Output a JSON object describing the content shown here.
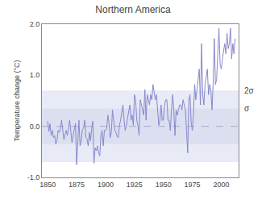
{
  "chart_data": {
    "type": "line",
    "title": "Northern America",
    "ylabel": "Temperature change (°C)",
    "x": [
      1850,
      1851,
      1852,
      1853,
      1854,
      1855,
      1856,
      1857,
      1858,
      1859,
      1860,
      1861,
      1862,
      1863,
      1864,
      1865,
      1866,
      1867,
      1868,
      1869,
      1870,
      1871,
      1872,
      1873,
      1874,
      1875,
      1876,
      1877,
      1878,
      1879,
      1880,
      1881,
      1882,
      1883,
      1884,
      1885,
      1886,
      1887,
      1888,
      1889,
      1890,
      1891,
      1892,
      1893,
      1894,
      1895,
      1896,
      1897,
      1898,
      1899,
      1900,
      1901,
      1902,
      1903,
      1904,
      1905,
      1906,
      1907,
      1908,
      1909,
      1910,
      1911,
      1912,
      1913,
      1914,
      1915,
      1916,
      1917,
      1918,
      1919,
      1920,
      1921,
      1922,
      1923,
      1924,
      1925,
      1926,
      1927,
      1928,
      1929,
      1930,
      1931,
      1932,
      1933,
      1934,
      1935,
      1936,
      1937,
      1938,
      1939,
      1940,
      1941,
      1942,
      1943,
      1944,
      1945,
      1946,
      1947,
      1948,
      1949,
      1950,
      1951,
      1952,
      1953,
      1954,
      1955,
      1956,
      1957,
      1958,
      1959,
      1960,
      1961,
      1962,
      1963,
      1964,
      1965,
      1966,
      1967,
      1968,
      1969,
      1970,
      1971,
      1972,
      1973,
      1974,
      1975,
      1976,
      1977,
      1978,
      1979,
      1980,
      1981,
      1982,
      1983,
      1984,
      1985,
      1986,
      1987,
      1988,
      1989,
      1990,
      1991,
      1992,
      1993,
      1994,
      1995,
      1996,
      1997,
      1998,
      1999,
      2000,
      2001,
      2002,
      2003,
      2004,
      2005,
      2006,
      2007,
      2008,
      2009,
      2010,
      2011,
      2012
    ],
    "values": [
      0.1,
      -0.1,
      0.05,
      -0.18,
      -0.08,
      -0.22,
      -0.18,
      -0.35,
      -0.28,
      -0.08,
      -0.12,
      -0.04,
      0.12,
      -0.04,
      -0.26,
      -0.16,
      -0.08,
      -0.18,
      -0.04,
      0.12,
      -0.1,
      -0.32,
      -0.18,
      -0.06,
      0.06,
      -0.75,
      -0.3,
      0.12,
      -0.38,
      -0.28,
      -0.06,
      -0.04,
      0.12,
      -0.22,
      -0.25,
      -0.38,
      -0.12,
      -0.28,
      -0.04,
      0.1,
      -0.72,
      -0.42,
      -0.48,
      -0.38,
      -0.52,
      -0.58,
      -0.18,
      -0.08,
      -0.38,
      -0.08,
      -0.08,
      -0.04,
      0.22,
      0.06,
      -0.22,
      -0.12,
      0.32,
      0.1,
      -0.08,
      -0.12,
      -0.2,
      -0.22,
      0.02,
      0.12,
      0.32,
      0.42,
      0.12,
      -0.08,
      0.02,
      0.18,
      0.28,
      0.42,
      0.12,
      0.22,
      0.02,
      0.62,
      0.52,
      0.12,
      0.02,
      -0.18,
      0.52,
      0.42,
      0.32,
      0.22,
      0.72,
      0.12,
      0.62,
      0.52,
      0.42,
      0.62,
      0.52,
      0.82,
      0.62,
      0.52,
      0.62,
      0.32,
      0.02,
      0.12,
      0.42,
      0.12,
      0.12,
      0.42,
      0.52,
      0.52,
      0.12,
      0.12,
      -0.08,
      0.32,
      0.62,
      0.32,
      -0.18,
      0.32,
      0.22,
      0.32,
      0.42,
      0.42,
      0.32,
      0.52,
      0.42,
      0.32,
      -0.08,
      -0.52,
      0.52,
      0.62,
      0.08,
      -0.08,
      0.22,
      0.82,
      0.52,
      0.72,
      0.92,
      1.12,
      0.42,
      1.62,
      0.62,
      0.42,
      0.82,
      1.02,
      1.12,
      0.62,
      0.82,
      0.72,
      0.32,
      0.82,
      1.72,
      0.82,
      0.92,
      1.42,
      1.92,
      1.22,
      1.12,
      1.32,
      1.52,
      1.62,
      1.42,
      1.82,
      1.52,
      1.62,
      1.92,
      1.32,
      1.62,
      1.42,
      1.72
    ],
    "color": "#8888cc",
    "xlim": [
      1845,
      2015
    ],
    "ylim": [
      -1.0,
      2.0
    ],
    "xticks": [
      1850,
      1875,
      1900,
      1925,
      1950,
      1975,
      2000
    ],
    "yticks": [
      {
        "value": -1.0,
        "label": "-1.0"
      },
      {
        "value": 0.0,
        "label": "0.0"
      },
      {
        "value": 1.0,
        "label": "1.0"
      },
      {
        "value": 2.0,
        "label": "2.0"
      }
    ],
    "bands": [
      {
        "label": "2σ",
        "lo": -0.7,
        "hi": 0.7,
        "color": "#e8eaf5"
      },
      {
        "label": "σ",
        "lo": -0.35,
        "hi": 0.35,
        "color": "#dcdff0"
      }
    ],
    "hlines": [
      {
        "value": 0.0,
        "color": "#aaaacc",
        "line_style": "dashed"
      }
    ],
    "grid": false
  }
}
